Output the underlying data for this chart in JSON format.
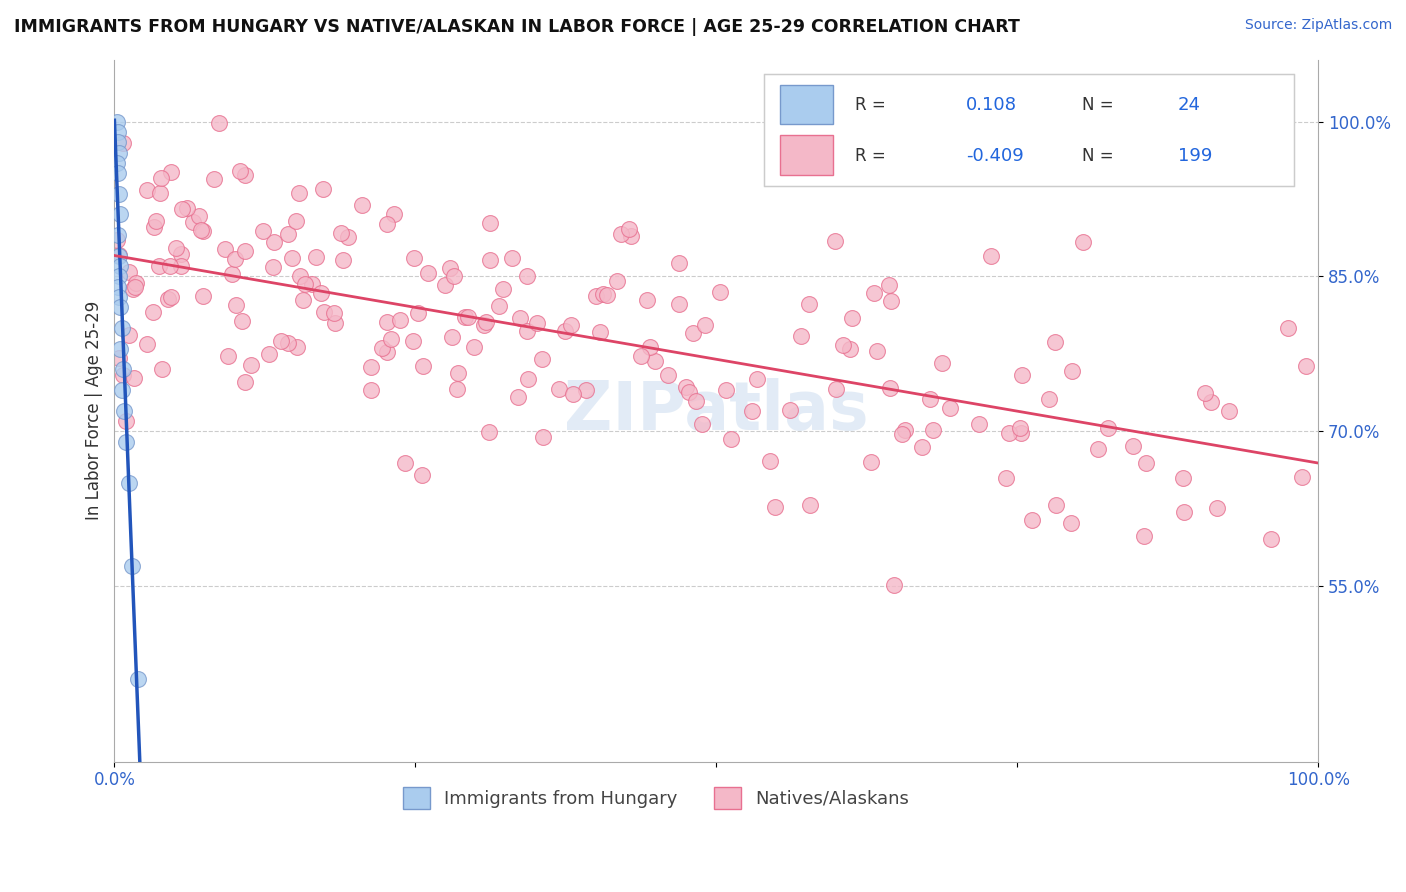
{
  "title": "IMMIGRANTS FROM HUNGARY VS NATIVE/ALASKAN IN LABOR FORCE | AGE 25-29 CORRELATION CHART",
  "source_text": "Source: ZipAtlas.com",
  "ylabel": "In Labor Force | Age 25-29",
  "xlim": [
    0.0,
    1.0
  ],
  "ylim": [
    0.38,
    1.06
  ],
  "yticks": [
    0.55,
    0.7,
    0.85,
    1.0
  ],
  "ytick_labels": [
    "55.0%",
    "70.0%",
    "85.0%",
    "100.0%"
  ],
  "xticks": [
    0.0,
    0.25,
    0.5,
    0.75,
    1.0
  ],
  "xtick_labels": [
    "0.0%",
    "",
    "",
    "",
    "100.0%"
  ],
  "legend_blue_label": "Immigrants from Hungary",
  "legend_pink_label": "Natives/Alaskans",
  "r_blue": 0.108,
  "n_blue": 24,
  "r_pink": -0.409,
  "n_pink": 199,
  "blue_color": "#aaccee",
  "pink_color": "#f4b8c8",
  "blue_edge_color": "#7799cc",
  "pink_edge_color": "#e87090",
  "blue_line_color": "#2255bb",
  "pink_line_color": "#dd4466",
  "dash_color": "#bbbbbb",
  "watermark_color": "#d0dff0",
  "title_color": "#111111",
  "tick_color": "#3366cc",
  "ylabel_color": "#333333",
  "source_color": "#3366cc",
  "grid_color": "#cccccc",
  "background": "#ffffff"
}
